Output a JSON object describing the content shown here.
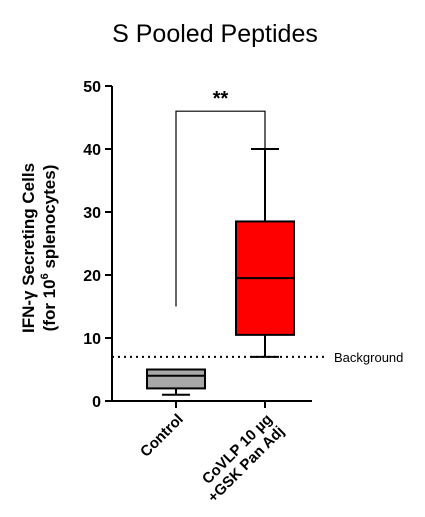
{
  "chart_data": {
    "type": "box",
    "title": "S Pooled Peptides",
    "ylabel_line1": "IFN-γ Secreting Cells",
    "ylabel_line2_pre": "(for 10",
    "ylabel_line2_sup": "6",
    "ylabel_line2_post": " splenocytes)",
    "xlabel": "",
    "ylim": [
      0,
      50
    ],
    "yticks": [
      0,
      10,
      20,
      30,
      40,
      50
    ],
    "grid": false,
    "categories": [
      "Control",
      "CoVLP 10 µg +GSK Pan Adj"
    ],
    "category_lines": [
      [
        "Control"
      ],
      [
        "CoVLP 10 µg",
        "+GSK Pan Adj"
      ]
    ],
    "boxes": [
      {
        "name": "Control",
        "min": 1,
        "q1": 2,
        "median": 4,
        "q3": 5,
        "max": 5,
        "color": "#a8a8a8"
      },
      {
        "name": "CoVLP 10 µg +GSK Pan Adj",
        "min": 7,
        "q1": 10.5,
        "median": 19.5,
        "q3": 28.5,
        "max": 40,
        "color": "#ff0000"
      }
    ],
    "reference_line": {
      "value": 7,
      "label": "Background",
      "style": "dotted"
    },
    "significance": {
      "label": "**",
      "from": "Control",
      "to": "CoVLP 10 µg +GSK Pan Adj",
      "y_from": 15,
      "y_to": 40,
      "y_bar": 46
    }
  }
}
